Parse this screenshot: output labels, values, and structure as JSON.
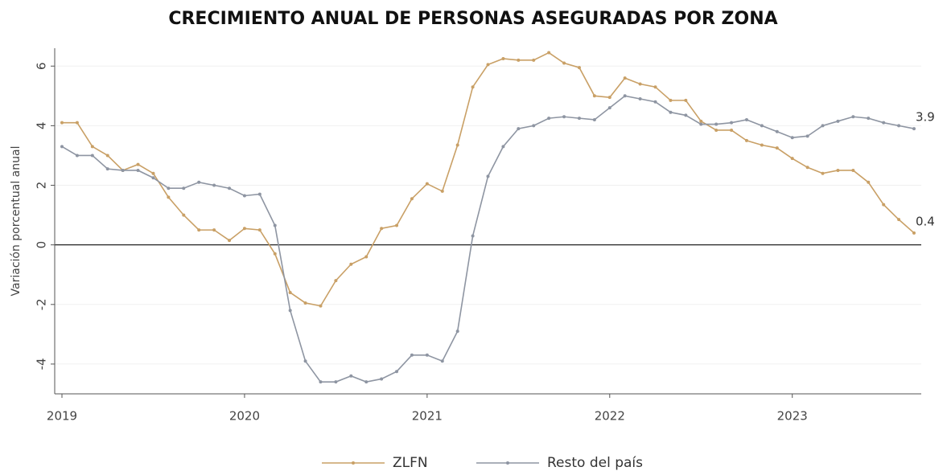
{
  "chart_data": {
    "type": "line",
    "title": "CRECIMIENTO ANUAL DE PERSONAS ASEGURADAS POR ZONA",
    "y_label": "Variación porcentual anual",
    "categories": [
      "2019",
      null,
      null,
      null,
      null,
      null,
      null,
      null,
      null,
      null,
      null,
      null,
      "2020",
      null,
      null,
      null,
      null,
      null,
      null,
      null,
      null,
      null,
      null,
      null,
      "2021",
      null,
      null,
      null,
      null,
      null,
      null,
      null,
      null,
      null,
      null,
      null,
      "2022",
      null,
      null,
      null,
      null,
      null,
      null,
      null,
      null,
      null,
      null,
      null,
      "2023",
      null,
      null,
      null,
      null,
      null,
      null,
      null,
      null
    ],
    "series": [
      {
        "name": "ZLFN",
        "color": "#c9a066",
        "values": [
          4.1,
          4.1,
          3.3,
          3.0,
          2.5,
          2.7,
          2.4,
          1.6,
          1.0,
          0.5,
          0.5,
          0.15,
          0.55,
          0.5,
          -0.3,
          -1.6,
          -1.95,
          -2.05,
          -1.2,
          -0.65,
          -0.4,
          0.55,
          0.65,
          1.55,
          2.05,
          1.8,
          3.35,
          5.3,
          6.05,
          6.25,
          6.2,
          6.2,
          6.45,
          6.1,
          5.95,
          5.0,
          4.95,
          5.6,
          5.4,
          5.3,
          4.85,
          4.85,
          4.15,
          3.85,
          3.85,
          3.5,
          3.35,
          3.25,
          2.9,
          2.6,
          2.4,
          2.5,
          2.5,
          2.1,
          1.35,
          0.85,
          0.4
        ]
      },
      {
        "name": "Resto del país",
        "color": "#8e95a2",
        "values": [
          3.3,
          3.0,
          3.0,
          2.55,
          2.5,
          2.5,
          2.25,
          1.9,
          1.9,
          2.1,
          2.0,
          1.9,
          1.65,
          1.7,
          0.65,
          -2.2,
          -3.9,
          -4.6,
          -4.6,
          -4.4,
          -4.6,
          -4.5,
          -4.25,
          -3.7,
          -3.7,
          -3.9,
          -2.9,
          0.3,
          2.3,
          3.3,
          3.9,
          4.0,
          4.25,
          4.3,
          4.25,
          4.2,
          4.6,
          5.0,
          4.9,
          4.8,
          4.45,
          4.35,
          4.05,
          4.05,
          4.1,
          4.2,
          4.0,
          3.8,
          3.6,
          3.65,
          4.0,
          4.15,
          4.3,
          4.25,
          4.1,
          4.0,
          3.9
        ]
      }
    ],
    "ylim": [
      -5,
      6.6
    ],
    "yticks": [
      -4,
      -2,
      0,
      2,
      4,
      6
    ],
    "grid": true
  }
}
